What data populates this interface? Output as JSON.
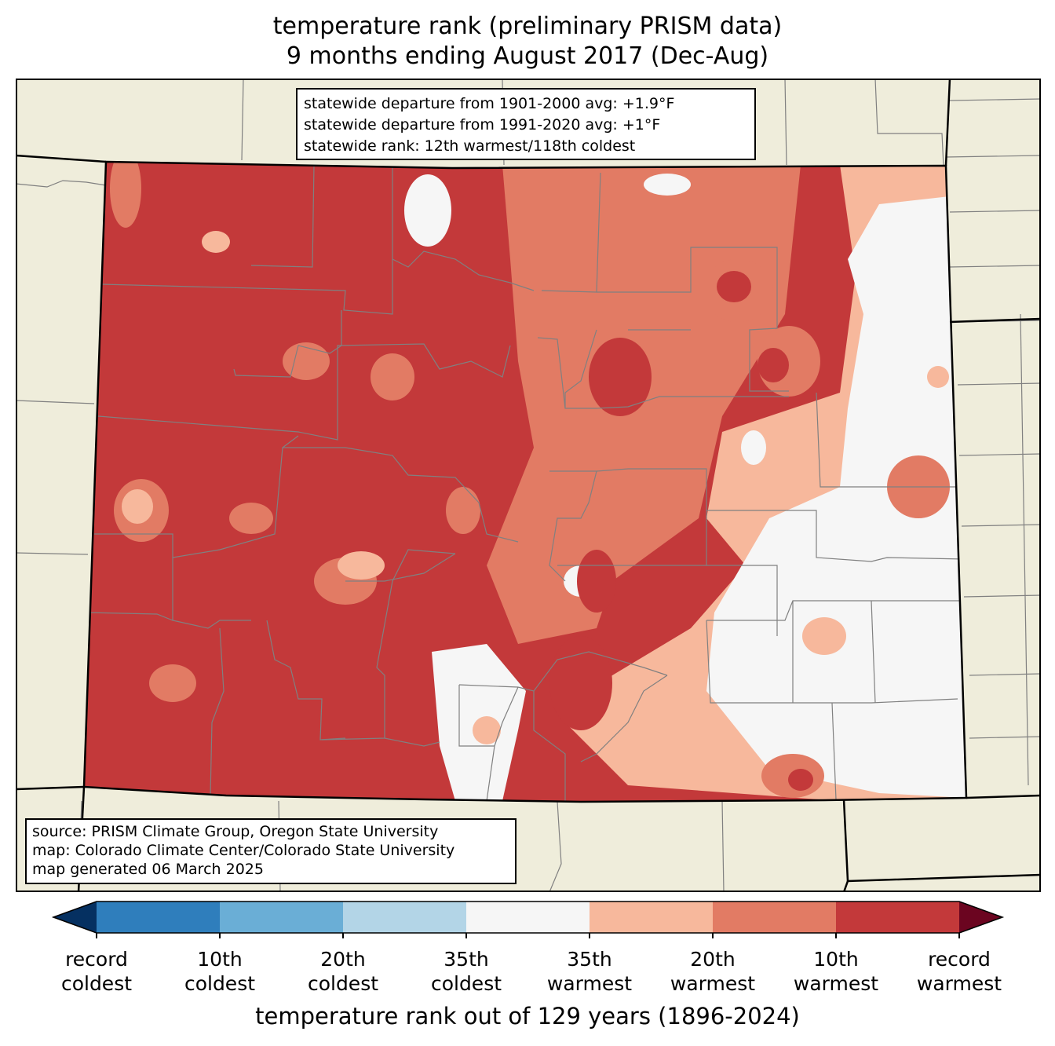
{
  "title": {
    "line1": "temperature rank (preliminary PRISM data)",
    "line2": "9 months ending August 2017 (Dec-Aug)"
  },
  "stats": {
    "line1": "statewide departure from 1901-2000 avg: +1.9°F",
    "line2": "statewide departure from 1991-2020 avg: +1°F",
    "line3": "statewide rank: 12th warmest/118th coldest"
  },
  "source": {
    "line1": "source: PRISM Climate Group, Oregon State University",
    "line2": "map: Colorado Climate Center/Colorado State University",
    "line3": "map generated 06 March 2025"
  },
  "colorbar": {
    "segments": [
      {
        "color": "#053061",
        "role": "extend-cold"
      },
      {
        "color": "#2f7ebc"
      },
      {
        "color": "#6aaed6"
      },
      {
        "color": "#b3d5e7"
      },
      {
        "color": "#f6f6f6"
      },
      {
        "color": "#f7b89c"
      },
      {
        "color": "#e27b64"
      },
      {
        "color": "#c3393a"
      },
      {
        "color": "#6b0520",
        "role": "extend-warm"
      }
    ],
    "ticks": [
      {
        "line1": "record",
        "line2": "coldest"
      },
      {
        "line1": "10th",
        "line2": "coldest"
      },
      {
        "line1": "20th",
        "line2": "coldest"
      },
      {
        "line1": "35th",
        "line2": "coldest"
      },
      {
        "line1": "35th",
        "line2": "warmest"
      },
      {
        "line1": "20th",
        "line2": "warmest"
      },
      {
        "line1": "10th",
        "line2": "warmest"
      },
      {
        "line1": "record",
        "line2": "warmest"
      }
    ],
    "label": "temperature rank out of 129 years (1896-2024)"
  },
  "map_colors": {
    "land": "#efeddb",
    "record_warmest_fill": "#c3393a",
    "tenth_warmest_fill": "#e27b64",
    "twentieth_warmest_fill": "#f7b89c",
    "near_normal_fill": "#f6f6f6",
    "county_lines": "#808080"
  }
}
